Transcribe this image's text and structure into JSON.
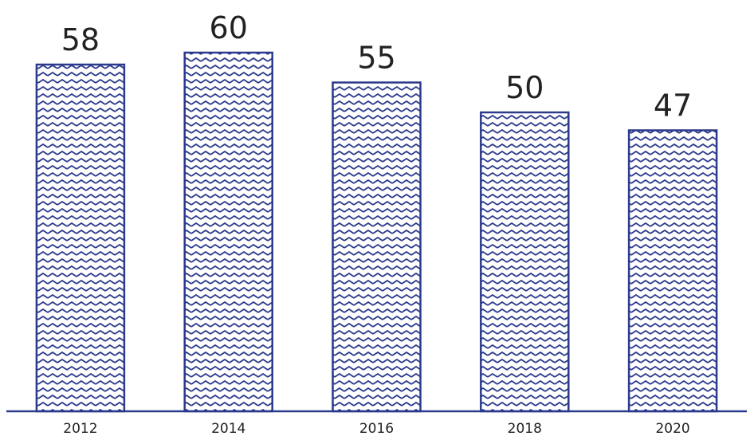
{
  "chart_data": {
    "type": "bar",
    "categories": [
      "2012",
      "2014",
      "2016",
      "2018",
      "2020"
    ],
    "values": [
      58,
      60,
      55,
      50,
      47
    ],
    "title": "",
    "xlabel": "",
    "ylabel": "",
    "ylim": [
      0,
      60
    ],
    "grid": false,
    "legend": "none",
    "colors": {
      "bar_stroke": "#2b3a8c",
      "bar_fill": "#ffffff",
      "pattern": "#2b3a8c",
      "axis": "#2b3a8c",
      "text": "#222222"
    }
  }
}
